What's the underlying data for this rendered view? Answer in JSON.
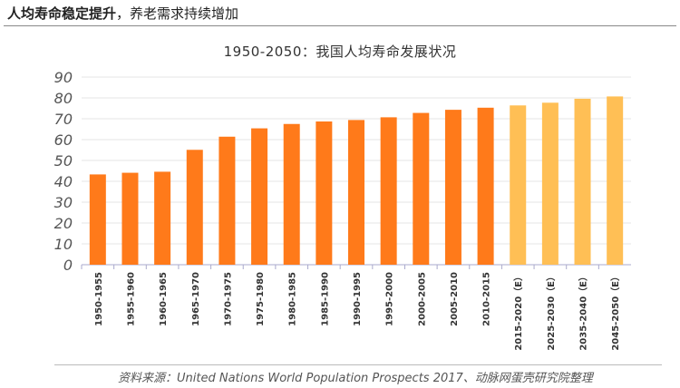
{
  "header": {
    "title_bold": "人均寿命稳定提升",
    "title_rest": "，养老需求持续增加"
  },
  "chart_data": {
    "type": "bar",
    "title": "1950-2050：我国人均寿命发展状况",
    "categories": [
      "1950-1955",
      "1955-1960",
      "1960-1965",
      "1965-1970",
      "1970-1975",
      "1975-1980",
      "1980-1985",
      "1985-1990",
      "1990-1995",
      "1995-2000",
      "2000-2005",
      "2005-2010",
      "2010-2015",
      "2015-2020（E）",
      "2025-2030（E）",
      "2035-2040（E）",
      "2045-2050（E）"
    ],
    "values": [
      43.3,
      44.1,
      44.6,
      55.1,
      61.4,
      65.4,
      67.5,
      68.7,
      69.4,
      70.7,
      72.8,
      74.3,
      75.3,
      76.4,
      77.7,
      79.6,
      80.7
    ],
    "estimated": [
      false,
      false,
      false,
      false,
      false,
      false,
      false,
      false,
      false,
      false,
      false,
      false,
      false,
      true,
      true,
      true,
      true
    ],
    "ylim": [
      0,
      90
    ],
    "yticks": [
      0,
      10,
      20,
      30,
      40,
      50,
      60,
      70,
      80,
      90
    ],
    "grid": true,
    "colors": {
      "actual": "#FF7A1A",
      "estimate": "#FFBF55"
    }
  },
  "footer": {
    "source": "资料来源：United Nations World Population Prospects 2017、动脉网蛋壳研究院整理"
  }
}
